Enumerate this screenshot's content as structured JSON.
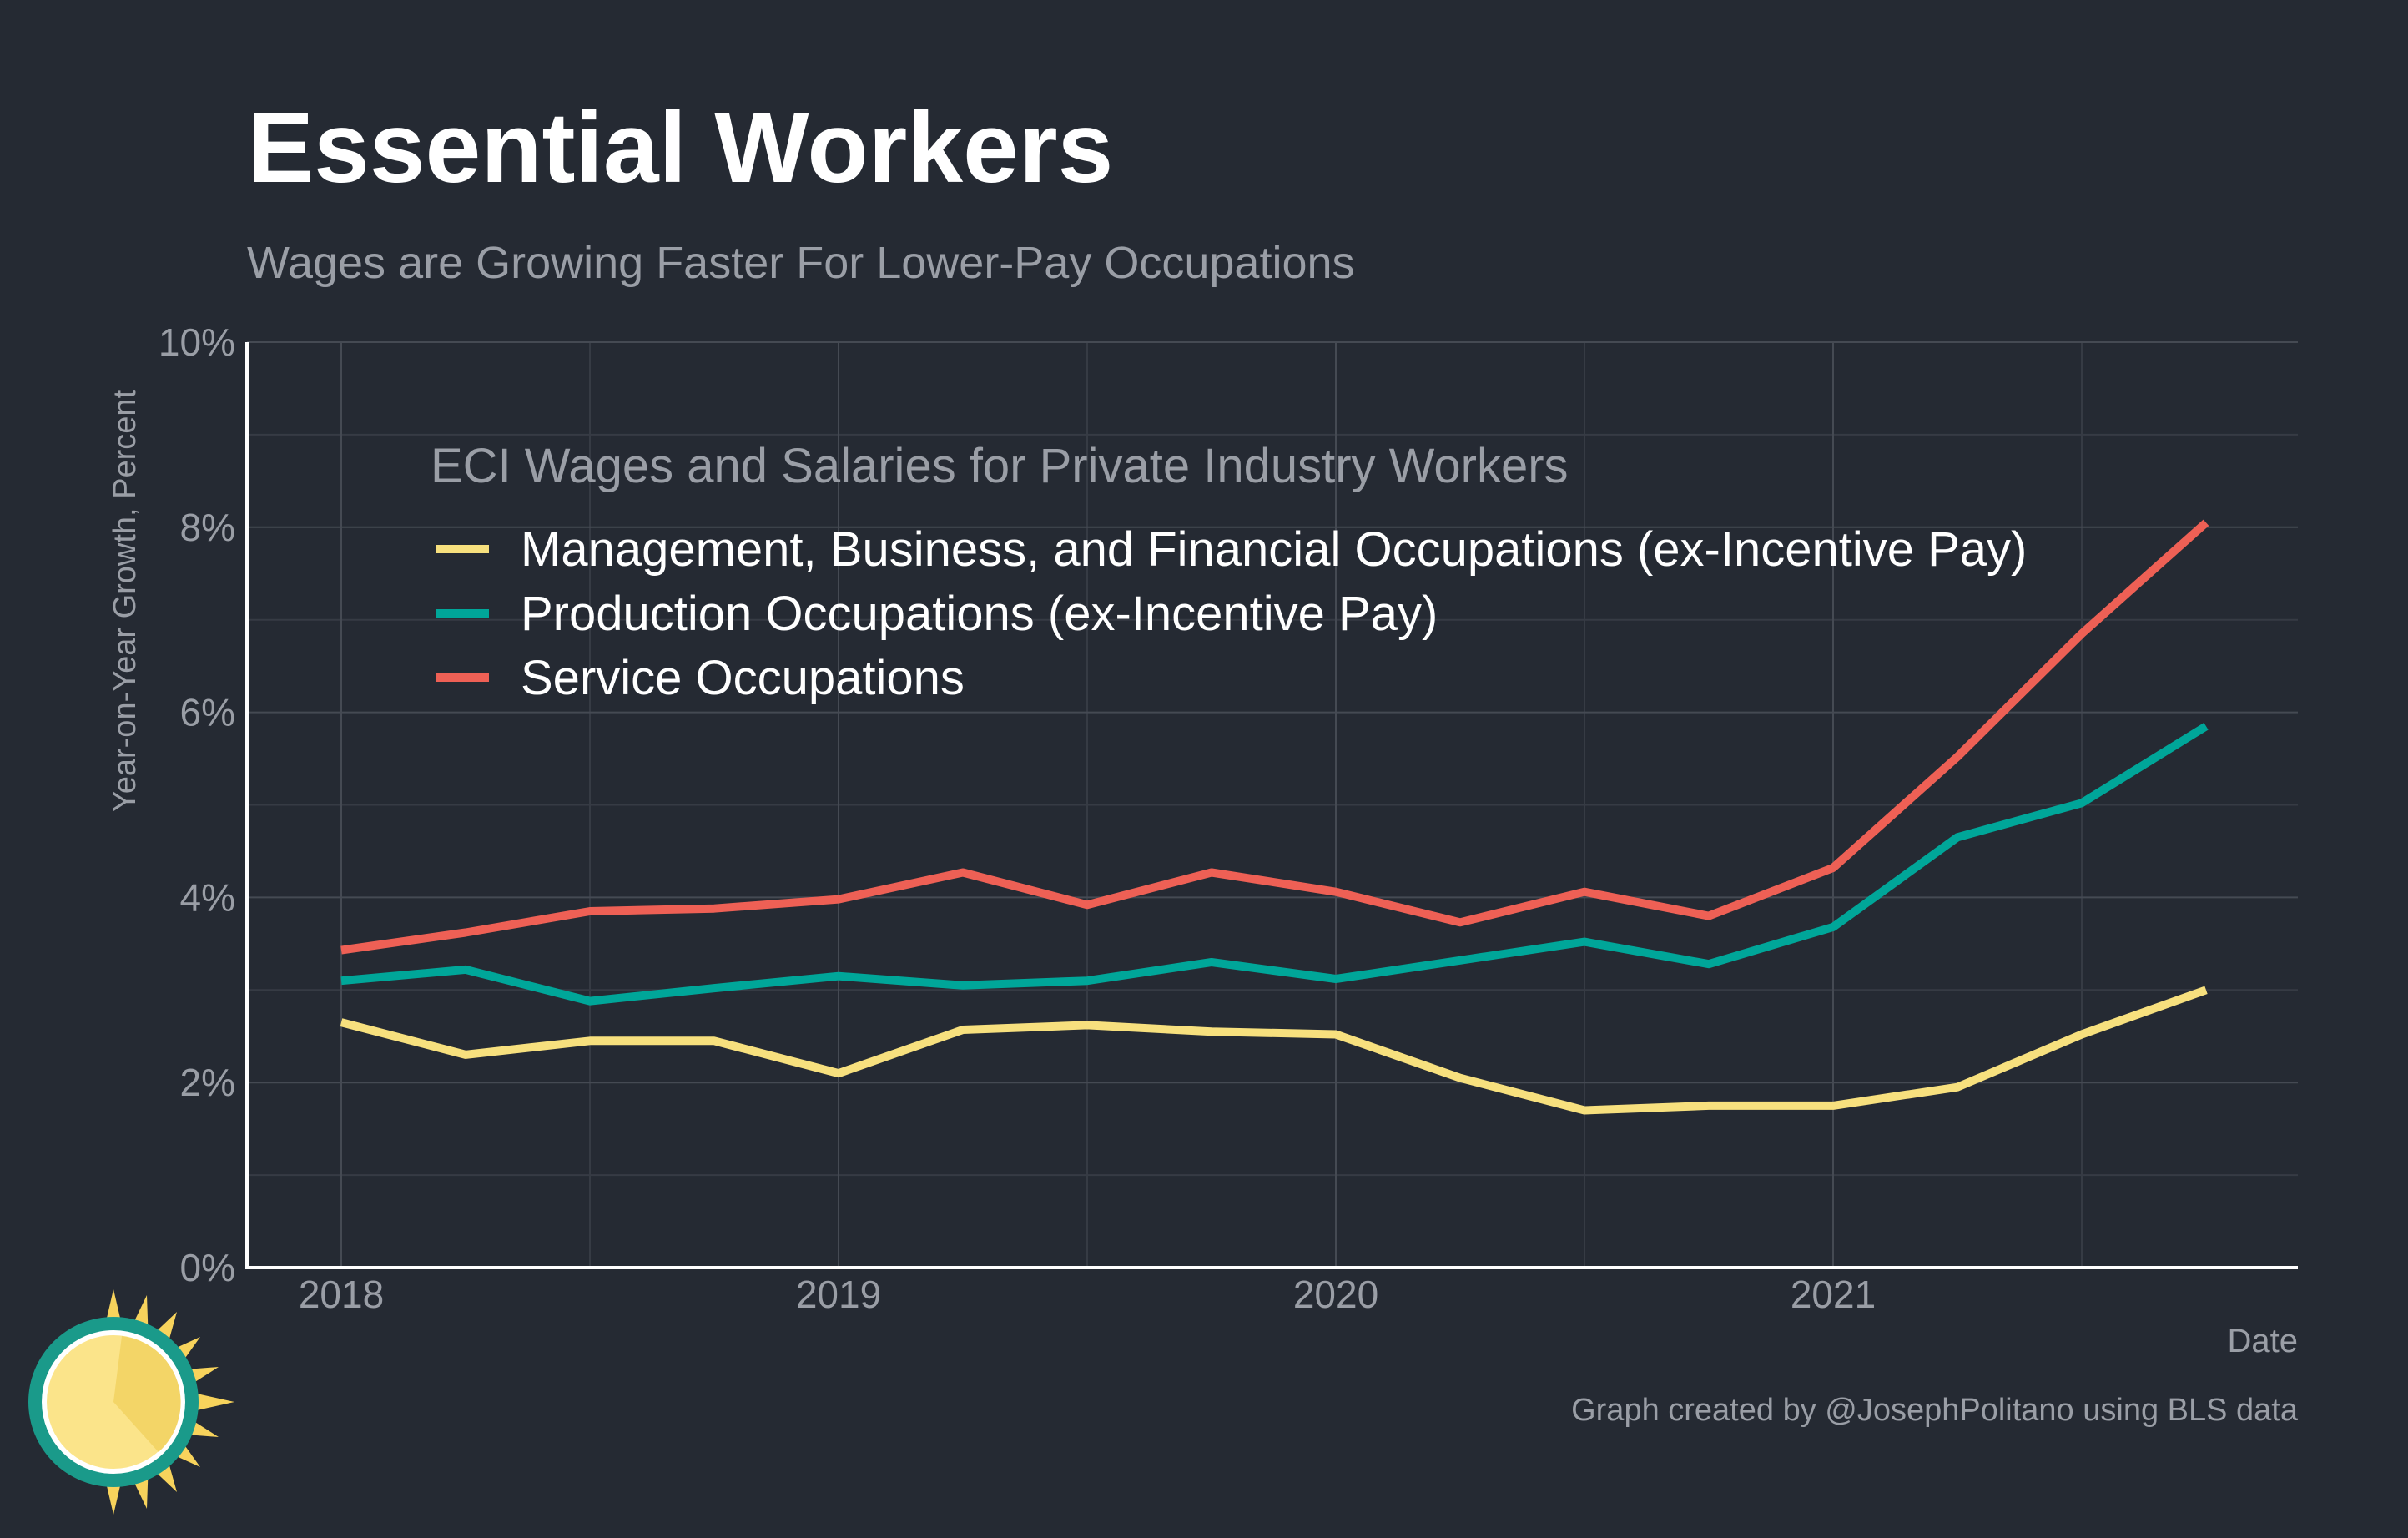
{
  "chart_data": {
    "type": "line",
    "title": "Essential Workers",
    "subtitle": "Wages are Growing Faster For Lower-Pay Occupations",
    "xlabel": "Date",
    "ylabel": "Year-on-Year Growth, Percent",
    "ylim": [
      0,
      10
    ],
    "y_ticks": [
      0,
      2,
      4,
      6,
      8,
      10
    ],
    "y_tick_labels": [
      "0%",
      "2%",
      "4%",
      "6%",
      "8%",
      "10%"
    ],
    "x_tick_labels": [
      "2018",
      "2019",
      "2020",
      "2021"
    ],
    "x_range": [
      "2017-10",
      "2021-12"
    ],
    "grid": true,
    "legend_title": "ECI Wages and Salaries for Private Industry Workers",
    "legend_position": "top-left (inside plot)",
    "x": [
      "2018-Q1",
      "2018-Q2",
      "2018-Q3",
      "2018-Q4",
      "2019-Q1",
      "2019-Q2",
      "2019-Q3",
      "2019-Q4",
      "2020-Q1",
      "2020-Q2",
      "2020-Q3",
      "2020-Q4",
      "2021-Q1",
      "2021-Q2",
      "2021-Q3",
      "2021-Q4"
    ],
    "series": [
      {
        "name": "Management, Business, and Financial Occupations (ex-Incentive Pay)",
        "color": "#f7e07e",
        "values": [
          2.65,
          2.3,
          2.45,
          2.45,
          2.1,
          2.57,
          2.62,
          2.55,
          2.52,
          2.05,
          1.7,
          1.75,
          1.75,
          1.95,
          2.52,
          3.0
        ]
      },
      {
        "name": "Production Occupations (ex-Incentive Pay)",
        "color": "#00a699",
        "values": [
          3.1,
          3.22,
          2.88,
          3.02,
          3.15,
          3.05,
          3.1,
          3.3,
          3.12,
          3.32,
          3.52,
          3.28,
          3.68,
          4.65,
          5.02,
          5.85
        ]
      },
      {
        "name": "Service Occupations",
        "color": "#ee6055",
        "values": [
          3.43,
          3.62,
          3.85,
          3.88,
          3.98,
          4.27,
          3.92,
          4.27,
          4.06,
          3.73,
          4.06,
          3.8,
          4.32,
          5.52,
          6.85,
          8.05
        ]
      }
    ],
    "caption": "Graph created by @JosephPolitano using BLS data",
    "logo": "sun-logo"
  }
}
